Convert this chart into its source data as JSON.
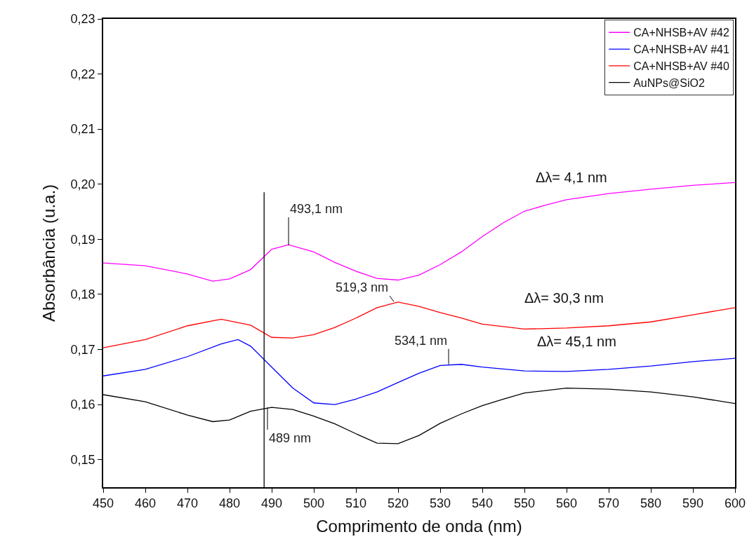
{
  "chart_data": {
    "type": "line",
    "xlabel": "Comprimento de onda (nm)",
    "ylabel": "Absorbância (u.a.)",
    "xlim": [
      450,
      600
    ],
    "xticks": [
      450,
      460,
      470,
      480,
      490,
      500,
      510,
      520,
      530,
      540,
      550,
      560,
      570,
      580,
      590,
      600
    ],
    "ylim": [
      0.145,
      0.23
    ],
    "yticks": [
      {
        "value": 0.15,
        "label": "0,15"
      },
      {
        "value": 0.16,
        "label": "0,16"
      },
      {
        "value": 0.17,
        "label": "0,17"
      },
      {
        "value": 0.18,
        "label": "0,18"
      },
      {
        "value": 0.19,
        "label": "0,19"
      },
      {
        "value": 0.2,
        "label": "0,20"
      },
      {
        "value": 0.21,
        "label": "0,21"
      },
      {
        "value": 0.22,
        "label": "0,22"
      },
      {
        "value": 0.23,
        "label": "0,23"
      }
    ],
    "legend": "top right",
    "marker": "none",
    "line_style": "solid",
    "series": [
      {
        "name": "CA+NHSB+AV #42",
        "color": "#ff00ff",
        "x": [
          450,
          460,
          470,
          476,
          480,
          485,
          490,
          494,
          500,
          505,
          510,
          515,
          520,
          525,
          530,
          535,
          540,
          545,
          550,
          555,
          560,
          570,
          580,
          590,
          600
        ],
        "values": [
          0.1857,
          0.1852,
          0.1837,
          0.1824,
          0.1828,
          0.1845,
          0.1882,
          0.189,
          0.1877,
          0.1858,
          0.1842,
          0.1829,
          0.1826,
          0.1835,
          0.1854,
          0.1877,
          0.1905,
          0.193,
          0.1951,
          0.1962,
          0.1972,
          0.1983,
          0.1991,
          0.1998,
          0.2003
        ]
      },
      {
        "name": "CA+NHSB+AV #41",
        "color": "#0000ff",
        "x": [
          450,
          460,
          470,
          478,
          482,
          485,
          490,
          495,
          500,
          505,
          510,
          515,
          520,
          525,
          530,
          535,
          540,
          550,
          560,
          570,
          580,
          590,
          600
        ],
        "values": [
          0.1652,
          0.1664,
          0.1687,
          0.171,
          0.1718,
          0.1706,
          0.1668,
          0.163,
          0.1603,
          0.16,
          0.161,
          0.1623,
          0.164,
          0.1657,
          0.1671,
          0.1673,
          0.1668,
          0.1661,
          0.166,
          0.1664,
          0.167,
          0.1678,
          0.1684
        ]
      },
      {
        "name": "CA+NHSB+AV #40",
        "color": "#ff0000",
        "x": [
          450,
          460,
          470,
          478,
          485,
          490,
          495,
          500,
          505,
          510,
          515,
          520,
          525,
          530,
          535,
          540,
          550,
          560,
          570,
          580,
          590,
          600
        ],
        "values": [
          0.1703,
          0.1718,
          0.1743,
          0.1755,
          0.1744,
          0.1722,
          0.1721,
          0.1727,
          0.174,
          0.1757,
          0.1776,
          0.1786,
          0.1778,
          0.1767,
          0.1757,
          0.1746,
          0.1737,
          0.1739,
          0.1743,
          0.175,
          0.1763,
          0.1776
        ]
      },
      {
        "name": "AuNPs@SiO2",
        "color": "#000000",
        "x": [
          450,
          460,
          470,
          476,
          480,
          485,
          490,
          495,
          500,
          505,
          510,
          515,
          520,
          525,
          530,
          535,
          540,
          545,
          550,
          560,
          570,
          580,
          590,
          600
        ],
        "values": [
          0.1618,
          0.1605,
          0.1581,
          0.1569,
          0.1572,
          0.1588,
          0.1595,
          0.1591,
          0.1579,
          0.1565,
          0.1547,
          0.153,
          0.1529,
          0.1544,
          0.1566,
          0.1583,
          0.1598,
          0.161,
          0.1621,
          0.163,
          0.1628,
          0.1623,
          0.1614,
          0.1602
        ]
      }
    ],
    "ref_lines": [
      {
        "axis": "x",
        "value": 488.2,
        "color": "#000000",
        "line_style": "solid"
      }
    ],
    "annotations": [
      {
        "text": "493,1 nm",
        "x": 494,
        "y": 0.1889
      },
      {
        "text": "519,3 nm",
        "x": 519,
        "y": 0.1787
      },
      {
        "text": "534,1 nm",
        "x": 532,
        "y": 0.1673
      },
      {
        "text": "489 nm",
        "x": 489,
        "y": 0.1595
      },
      "Δλ= 4,1 nm",
      "Δλ= 30,3 nm",
      "Δλ= 45,1 nm"
    ]
  }
}
